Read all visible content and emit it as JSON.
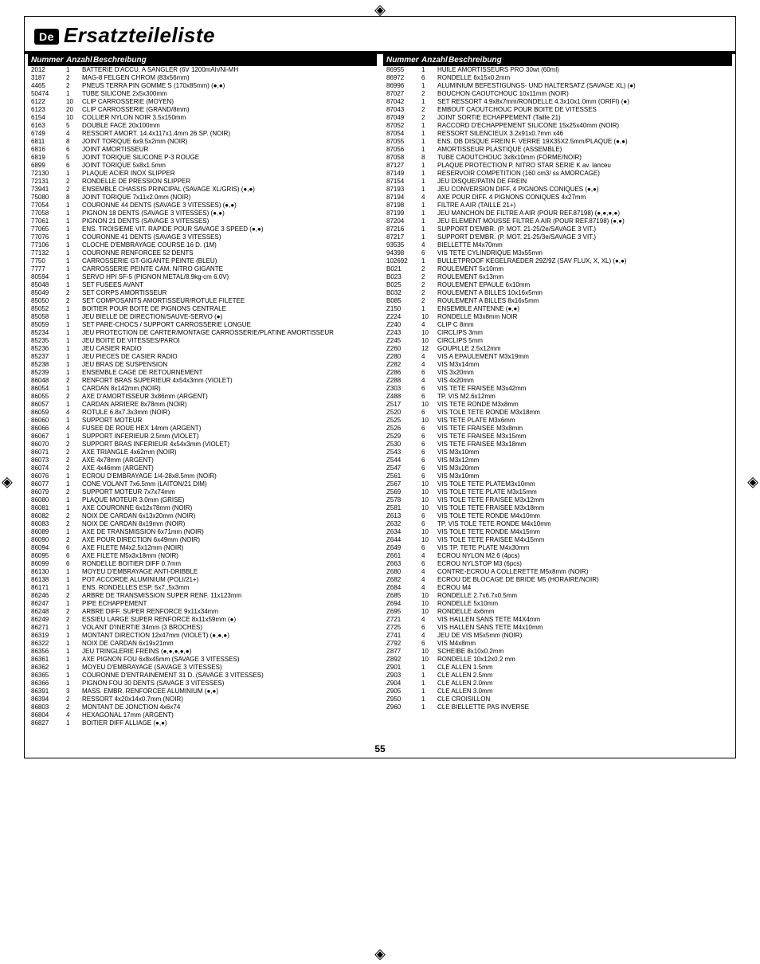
{
  "page": {
    "number": "55",
    "flag": "De",
    "title": "Ersatzteileliste"
  },
  "headers": {
    "num": "Nummer",
    "qty": "Anzahl",
    "desc": "Beschreibung"
  },
  "left": [
    {
      "n": "2012",
      "q": "1",
      "d": "BATTERIE D'ACCU.  A SANGLER (6V 1200mAh/Ni-MH"
    },
    {
      "n": "3187",
      "q": "2",
      "d": "MAG-8 FELGEN CHROM (83x56mm)"
    },
    {
      "n": "4465",
      "q": "2",
      "d": "PNEUS TERRA PIN GOMME S (170x85mm) (●,●)"
    },
    {
      "n": "50474",
      "q": "1",
      "d": "TUBE SILICONE 2x5x300mm"
    },
    {
      "n": "6122",
      "q": "10",
      "d": "CLIP CARROSSERIE (MOYEN)"
    },
    {
      "n": "6123",
      "q": "20",
      "d": "CLIP CARROSSERIE (GRAND/8mm)"
    },
    {
      "n": "6154",
      "q": "10",
      "d": "COLLIER NYLON NOIR 3.5x150mm"
    },
    {
      "n": "6163",
      "q": "5",
      "d": "DOUBLE FACE 20x100mm"
    },
    {
      "n": "6749",
      "q": "4",
      "d": "RESSORT AMORT. 14.4x117x1.4mm 26 SP. (NOIR)"
    },
    {
      "n": "6811",
      "q": "8",
      "d": "JOINT TORIQUE 6x9.5x2mm (NOIR)"
    },
    {
      "n": "6816",
      "q": "6",
      "d": "JOINT AMORTISSEUR"
    },
    {
      "n": "6819",
      "q": "5",
      "d": "JOINT TORIQUE SILICONE P-3 ROUGE"
    },
    {
      "n": "6899",
      "q": "6",
      "d": "JOINT TORIQUE 5x8x1.5mm"
    },
    {
      "n": "72130",
      "q": "1",
      "d": "PLAQUE ACIER INOX SLIPPER"
    },
    {
      "n": "72131",
      "q": "2",
      "d": "RONDELLE DE PRESSION SLIPPER"
    },
    {
      "n": "73941",
      "q": "2",
      "d": "ENSEMBLE CHASSIS PRINCIPAL (SAVAGE XL/GRIS) (●,●)"
    },
    {
      "n": "75080",
      "q": "8",
      "d": "JOINT TORIQUE 7x11x2.0mm (NOIR)"
    },
    {
      "n": "77054",
      "q": "1",
      "d": "COURONNE 44 DENTS (SAVAGE 3 VITESSES) (●,●)"
    },
    {
      "n": "77058",
      "q": "1",
      "d": "PIGNON 18 DENTS (SAVAGE 3 VITESSES) (●,●)"
    },
    {
      "n": "77061",
      "q": "1",
      "d": "PIGNON 21 DENTS (SAVAGE 3 VITESSES)"
    },
    {
      "n": "77065",
      "q": "1",
      "d": "ENS. TROISIEME VIT. RAPIDE POUR SAVAGE 3 SPEED (●,●)"
    },
    {
      "n": "77076",
      "q": "1",
      "d": "COURONNE 41 DENTS (SAVAGE 3 VITESSES)"
    },
    {
      "n": "77106",
      "q": "1",
      "d": "CLOCHE D'EMBRAYAGE COURSE 16 D. (1M)"
    },
    {
      "n": "77132",
      "q": "1",
      "d": "COURONNE RENFORCEE 52 DENTS"
    },
    {
      "n": "7750",
      "q": "1",
      "d": "CARROSSERIE GT-GIGANTE PEINTE (BLEU)"
    },
    {
      "n": "7777",
      "q": "1",
      "d": "CARROSSERIE PEINTE CAM. NITRO GIGANTE"
    },
    {
      "n": "80594",
      "q": "1",
      "d": "SERVO HPI SF-5 (PIGNON METAL/8.9kg-cm 6.0V)"
    },
    {
      "n": "85048",
      "q": "1",
      "d": "SET FUSEES AVANT"
    },
    {
      "n": "85049",
      "q": "2",
      "d": "SET CORPS AMORTISSEUR"
    },
    {
      "n": "85050",
      "q": "2",
      "d": "SET COMPOSANTS AMORTISSEUR/ROTULE FILETEE"
    },
    {
      "n": "85052",
      "q": "1",
      "d": "BOITIER POUR BOITE DE PIGNONS CENTRALE"
    },
    {
      "n": "85058",
      "q": "1",
      "d": "JEU BIELLE DE DIRECTION/SAUVE-SERVO (●)"
    },
    {
      "n": "85059",
      "q": "1",
      "d": "SET PARE-CHOCS / SUPPORT CARROSSERIE LONGUE"
    },
    {
      "n": "85234",
      "q": "1",
      "d": "JEU PROTECTION DE CARTER/MONTAGE CARROSSERIE/PLATINE AMORTISSEUR"
    },
    {
      "n": "85235",
      "q": "1",
      "d": "JEU BOITE DE VITESSES/PAROI"
    },
    {
      "n": "85236",
      "q": "1",
      "d": "JEU CASIER RADIO"
    },
    {
      "n": "85237",
      "q": "1",
      "d": "JEU PIECES DE CASIER RADIO"
    },
    {
      "n": "85238",
      "q": "1",
      "d": "JEU BRAS DE SUSPENSION"
    },
    {
      "n": "85239",
      "q": "1",
      "d": "ENSEMBLE CAGE DE RETOURNEMENT"
    },
    {
      "n": "86048",
      "q": "2",
      "d": "RENFORT BRAS SUPERIEUR 4x54x3mm (VIOLET)"
    },
    {
      "n": "86054",
      "q": "1",
      "d": "CARDAN 8x142mm (NOIR)"
    },
    {
      "n": "86055",
      "q": "2",
      "d": "AXE D'AMORTISSEUR 3x86mm (ARGENT)"
    },
    {
      "n": "86057",
      "q": "1",
      "d": "CARDAN ARRIERE 8x78mm (NOIR)"
    },
    {
      "n": "86059",
      "q": "4",
      "d": "ROTULE 6.8x7.3x3mm (NOIR)"
    },
    {
      "n": "86060",
      "q": "1",
      "d": "SUPPORT MOTEUR"
    },
    {
      "n": "86066",
      "q": "4",
      "d": "FUSEE DE ROUE HEX 14mm (ARGENT)"
    },
    {
      "n": "86067",
      "q": "1",
      "d": "SUPPORT INFERIEUR 2.5mm (VIOLET)"
    },
    {
      "n": "86070",
      "q": "2",
      "d": "SUPPORT BRAS INFERIEUR 4x54x3mm (VIOLET)"
    },
    {
      "n": "86071",
      "q": "2",
      "d": "AXE TRIANGLE 4x62mm (NOIR)"
    },
    {
      "n": "86073",
      "q": "2",
      "d": "AXE 4x78mm (ARGENT)"
    },
    {
      "n": "86074",
      "q": "2",
      "d": "AXE 4x46mm (ARGENT)"
    },
    {
      "n": "86076",
      "q": "1",
      "d": "ECROU D'EMBRAYAGE 1/4-28x8.5mm (NOIR)"
    },
    {
      "n": "86077",
      "q": "1",
      "d": "CONE VOLANT 7x6.5mm (LAITON/21 DIM)"
    },
    {
      "n": "86079",
      "q": "2",
      "d": "SUPPORT MOTEUR 7x7x74mm"
    },
    {
      "n": "86080",
      "q": "1",
      "d": "PLAQUE MOTEUR 3.0mm (GRISE)"
    },
    {
      "n": "86081",
      "q": "1",
      "d": "AXE COURONNE 6x12x78mm (NOIR)"
    },
    {
      "n": "86082",
      "q": "2",
      "d": "NOIX DE CARDAN 6x13x20mm (NOIR)"
    },
    {
      "n": "86083",
      "q": "2",
      "d": "NOIX DE CARDAN 8x19mm (NOIR)"
    },
    {
      "n": "86089",
      "q": "1",
      "d": "AXE DE TRANSMISSION 6x71mm (NOIR)"
    },
    {
      "n": "86090",
      "q": "2",
      "d": "AXE POUR DIRECTION 6x49mm (NOIR)"
    },
    {
      "n": "86094",
      "q": "6",
      "d": "AXE FILETE M4x2.5x12mm (NOIR)"
    },
    {
      "n": "86095",
      "q": "6",
      "d": "AXE FILETE M5x3x18mm (NOIR)"
    },
    {
      "n": "86099",
      "q": "6",
      "d": "RONDELLE BOITIER DIFF 0.7mm"
    },
    {
      "n": "86130",
      "q": "1",
      "d": "MOYEU D'EMBRAYAGE ANTI-DRIBBLE"
    },
    {
      "n": "86138",
      "q": "1",
      "d": "POT ACCORDE ALUMINIUM (POLI/21+)"
    },
    {
      "n": "86171",
      "q": "1",
      "d": "ENS. RONDELLES ESP. 5x7.,5x3mm"
    },
    {
      "n": "86246",
      "q": "2",
      "d": "ARBRE DE TRANSMISSION SUPER RENF. 11x123mm"
    },
    {
      "n": "86247",
      "q": "1",
      "d": "PIPE ECHAPPEMENT"
    },
    {
      "n": "86248",
      "q": "2",
      "d": "ARBRE DIFF. SUPER RENFORCE 9x11x34mm"
    },
    {
      "n": "86249",
      "q": "2",
      "d": "ESSIEU LARGE SUPER RENFORCE 8x11x59mm (●)"
    },
    {
      "n": "86271",
      "q": "1",
      "d": "VOLANT D'INERTIE 34mm (3 BROCHES)"
    },
    {
      "n": "86319",
      "q": "1",
      "d": "MONTANT DIRECTION 12x47mm (VIOLET) (●,●,●)"
    },
    {
      "n": "86322",
      "q": "1",
      "d": "NOIX DE CARDAN 6x19x21mm"
    },
    {
      "n": "86356",
      "q": "1",
      "d": "JEU TRINGLERIE FREINS (●,●,●,●,●)"
    },
    {
      "n": "86361",
      "q": "1",
      "d": "AXE PIGNON FOU 6x8x45mm (SAVAGE 3 VITESSES)"
    },
    {
      "n": "86362",
      "q": "1",
      "d": "MOYEU D'EMBRAYAGE (SAVAGE 3 VITESSES)"
    },
    {
      "n": "86365",
      "q": "1",
      "d": "COURONNE D'ENTRAINEMENT 31 D. (SAVAGE 3 VITESSES)"
    },
    {
      "n": "86366",
      "q": "1",
      "d": "PIGNON FOU 30 DENTS (SAVAGE 3 VITESSES)"
    },
    {
      "n": "86391",
      "q": "3",
      "d": "MASS. EMBR. RENFORCEE ALUMINIUM (●,●)"
    },
    {
      "n": "86394",
      "q": "2",
      "d": "RESSORT 4x20x14x0.7mm (NOIR)"
    },
    {
      "n": "86803",
      "q": "2",
      "d": "MONTANT DE JONCTION 4x6x74"
    },
    {
      "n": "86804",
      "q": "4",
      "d": "HEXAGONAL 17mm (ARGENT)"
    },
    {
      "n": "86827",
      "q": "1",
      "d": "BOITIER DIFF ALLIAGE (●,●)"
    }
  ],
  "right": [
    {
      "n": "86955",
      "q": "1",
      "d": "HUILE AMORTISSEURS PRO 30wt (60ml)"
    },
    {
      "n": "86972",
      "q": "6",
      "d": "RONDELLE 6x15x0.2mm"
    },
    {
      "n": "86996",
      "q": "1",
      "d": "ALUMINIUM BEFESTIGUNGS- UND HALTERSATZ (SAVAGE XL) (●)"
    },
    {
      "n": "87027",
      "q": "2",
      "d": "BOUCHON CAOUTCHOUC 10x11mm (NOIR)"
    },
    {
      "n": "87042",
      "q": "1",
      "d": "SET RESSORT 4.9x8x7mm/RONDELLE 4.3x10x1.0mm (ORIFI) (●)"
    },
    {
      "n": "87043",
      "q": "2",
      "d": "EMBOUT CAOUTCHOUC POUR BOITE DE VITESSES"
    },
    {
      "n": "87049",
      "q": "2",
      "d": "JOINT SORTIE ECHAPPEMENT (Taille 21)"
    },
    {
      "n": "87052",
      "q": "1",
      "d": "RACCORD D'ECHAPPEMENT SILICONE 15x25x40mm (NOIR)"
    },
    {
      "n": "87054",
      "q": "1",
      "d": "RESSORT SILENCIEUX 3.2x91x0.7mm x46"
    },
    {
      "n": "87055",
      "q": "1",
      "d": "ENS. DB DISQUE FREIN F. VERRE 19X35X2.5mm/PLAQUE (●,●)"
    },
    {
      "n": "87056",
      "q": "1",
      "d": "AMORTISSEUR PLASTIQUE (ASSEMBLE)"
    },
    {
      "n": "87058",
      "q": "8",
      "d": "TUBE CAOUTCHOUC 3x8x10mm (FORME/NOIR)"
    },
    {
      "n": "87127",
      "q": "1",
      "d": "PLAQUE PROTECTION P. NITRO STAR SERIE K av. lanceu"
    },
    {
      "n": "87149",
      "q": "1",
      "d": "RESERVOIR COMPETITION (160 cm3/ ss AMORCAGE)"
    },
    {
      "n": "87154",
      "q": "1",
      "d": "JEU DISQUE/PATIN DE FREIN"
    },
    {
      "n": "87193",
      "q": "1",
      "d": "JEU CONVERSION DIFF. 4 PIGNONS CONIQUES (●,●)"
    },
    {
      "n": "87194",
      "q": "4",
      "d": "AXE POUR DIFF. 4 PIGNONS CONIQUES 4x27mm"
    },
    {
      "n": "87198",
      "q": "1",
      "d": "FILTRE A AIR (TAILLE 21+)"
    },
    {
      "n": "87199",
      "q": "1",
      "d": "JEU MANCHON DE FILTRE A AIR (POUR REF.87198) (●,●,●,●)"
    },
    {
      "n": "87204",
      "q": "1",
      "d": "JEU ELEMENT MOUSSE FILTRE A AIR (POUR REF.87198) (●,●)"
    },
    {
      "n": "87216",
      "q": "1",
      "d": "SUPPORT D'EMBR. (P. MOT. 21-25/2e/SAVAGE 3 VIT.)"
    },
    {
      "n": "87217",
      "q": "1",
      "d": "SUPPORT D'EMBR. (P. MOT. 21-25/3e/SAVAGE 3 VIT.)"
    },
    {
      "n": "93535",
      "q": "4",
      "d": "BIELLETTE M4x70mm"
    },
    {
      "n": "94398",
      "q": "6",
      "d": "VIS TETE CYLINDRIQUE M3x55mm"
    },
    {
      "n": "102692",
      "q": "1",
      "d": "BULLETPROOF KEGELRAEDER 29Z/9Z (SAV FLUX, X, XL) (●,●)"
    },
    {
      "n": "B021",
      "q": "2",
      "d": "ROULEMENT 5x10mm"
    },
    {
      "n": "B023",
      "q": "2",
      "d": "ROULEMENT 6x13mm"
    },
    {
      "n": "B025",
      "q": "2",
      "d": "ROULEMENT EPAULE 6x10mm"
    },
    {
      "n": "B032",
      "q": "2",
      "d": "ROULEMENT A BILLES 10x16x5mm"
    },
    {
      "n": "B085",
      "q": "2",
      "d": "ROULEMENT A BILLES 8x16x5mm"
    },
    {
      "n": "Z150",
      "q": "1",
      "d": "ENSEMBLE ANTENNE (●,●)"
    },
    {
      "n": "Z224",
      "q": "10",
      "d": "RONDELLE M3x8mm NOIR"
    },
    {
      "n": "Z240",
      "q": "4",
      "d": "CLIP C 8mm"
    },
    {
      "n": "Z243",
      "q": "10",
      "d": "CIRCLIPS 3mm"
    },
    {
      "n": "Z245",
      "q": "10",
      "d": "CIRCLIPS 5mm"
    },
    {
      "n": "Z260",
      "q": "12",
      "d": "GOUPILLE 2.5x12mm"
    },
    {
      "n": "Z280",
      "q": "4",
      "d": "VIS A EPAULEMENT M3x19mm"
    },
    {
      "n": "Z282",
      "q": "4",
      "d": "VIS M3x14mm"
    },
    {
      "n": "Z286",
      "q": "6",
      "d": "VIS 3x20mm"
    },
    {
      "n": "Z288",
      "q": "4",
      "d": "VIS 4x20mm"
    },
    {
      "n": "Z303",
      "q": "6",
      "d": "VIS TETE FRAISEE M3x42mm"
    },
    {
      "n": "Z488",
      "q": "6",
      "d": "TP. VIS M2.6x12mm"
    },
    {
      "n": "Z517",
      "q": "10",
      "d": "VIS TETE RONDE M3x8mm"
    },
    {
      "n": "Z520",
      "q": "6",
      "d": "VIS TOLE TETE RONDE M3x18mm"
    },
    {
      "n": "Z525",
      "q": "10",
      "d": "VIS TETE PLATE M3x6mm"
    },
    {
      "n": "Z526",
      "q": "6",
      "d": "VIS TETE FRAISEE M3x8mm"
    },
    {
      "n": "Z529",
      "q": "6",
      "d": "VIS TETE FRAISEE M3x15mm"
    },
    {
      "n": "Z530",
      "q": "6",
      "d": "VIS TETE FRAISEE M3x18mm"
    },
    {
      "n": "Z543",
      "q": "6",
      "d": "VIS M3x10mm"
    },
    {
      "n": "Z544",
      "q": "6",
      "d": "VIS M3x12mm"
    },
    {
      "n": "Z547",
      "q": "6",
      "d": "VIS M3x20mm"
    },
    {
      "n": "Z561",
      "q": "6",
      "d": "VIS M3x10mm"
    },
    {
      "n": "Z567",
      "q": "10",
      "d": "VIS TOLE TETE PLATEM3x10mm"
    },
    {
      "n": "Z569",
      "q": "10",
      "d": "VIS TOLE TETE PLATE M3x15mm"
    },
    {
      "n": "Z578",
      "q": "10",
      "d": "VIS TOLE TETE FRAISEE M3x12mm"
    },
    {
      "n": "Z581",
      "q": "10",
      "d": "VIS TOLE TETE FRAISEE M3x18mm"
    },
    {
      "n": "Z613",
      "q": "6",
      "d": "VIS TOLE TETE RONDE M4x10mm"
    },
    {
      "n": "Z632",
      "q": "6",
      "d": "TP. VIS TOLE TETE RONDE M4x10mm"
    },
    {
      "n": "Z634",
      "q": "10",
      "d": "VIS TOLE TETE RONDE M4x15mm"
    },
    {
      "n": "Z644",
      "q": "10",
      "d": "VIS TOLE TETE FRAISEE M4x15mm"
    },
    {
      "n": "Z649",
      "q": "6",
      "d": "VIS TP. TETE PLATE M4x30mm"
    },
    {
      "n": "Z661",
      "q": "4",
      "d": "ECROU NYLON M2.6 (4pcs)"
    },
    {
      "n": "Z663",
      "q": "6",
      "d": "ECROU NYLSTOP M3 (6pcs)"
    },
    {
      "n": "Z680",
      "q": "4",
      "d": "CONTRE-ECROU A COLLERETTE M5x8mm (NOIR)"
    },
    {
      "n": "Z682",
      "q": "4",
      "d": "ECROU DE BLOCAGE DE BRIDE M5 (HORAIRE/NOIR)"
    },
    {
      "n": "Z684",
      "q": "4",
      "d": "ECROU M4"
    },
    {
      "n": "Z685",
      "q": "10",
      "d": "RONDELLE 2.7x6.7x0.5mm"
    },
    {
      "n": "Z694",
      "q": "10",
      "d": "RONDELLE 5x10mm"
    },
    {
      "n": "Z695",
      "q": "10",
      "d": "RONDELLE 4x6mm"
    },
    {
      "n": "Z721",
      "q": "4",
      "d": "VIS HALLEN SANS TETE M4X4mm"
    },
    {
      "n": "Z725",
      "q": "6",
      "d": "VIS  HALLEN SANS TETE M4x10mm"
    },
    {
      "n": "Z741",
      "q": "4",
      "d": "JEU DE VIS M5x5mm (NOIR)"
    },
    {
      "n": "Z792",
      "q": "6",
      "d": "VIS M4x8mm"
    },
    {
      "n": "Z877",
      "q": "10",
      "d": "SCHEIBE 8x10x0.2mm"
    },
    {
      "n": "Z892",
      "q": "10",
      "d": "RONDELLE 10x12x0.2 mm"
    },
    {
      "n": "Z901",
      "q": "1",
      "d": "CLE ALLEN 1.5mm"
    },
    {
      "n": "Z903",
      "q": "1",
      "d": "CLE ALLEN 2.5mm"
    },
    {
      "n": "Z904",
      "q": "1",
      "d": "CLE ALLEN 2.0mm"
    },
    {
      "n": "Z905",
      "q": "1",
      "d": "CLE ALLEN 3.0mm"
    },
    {
      "n": "Z950",
      "q": "1",
      "d": "CLE CROISILLON"
    },
    {
      "n": "Z960",
      "q": "1",
      "d": "CLE BIELLETTE PAS INVERSE"
    }
  ]
}
